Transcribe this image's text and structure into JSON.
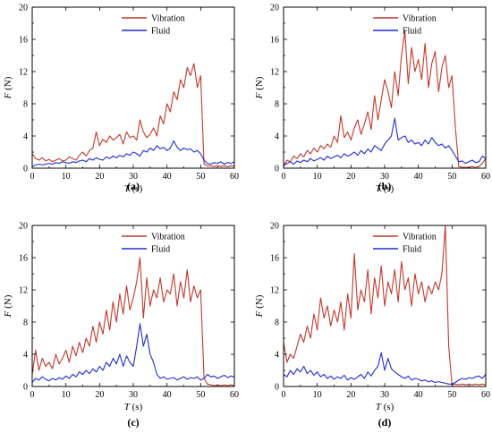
{
  "chart_data": [
    {
      "type": "line",
      "panel_label": "(a)",
      "x_unit": " (s)",
      "xlabel_var": "T",
      "ylabel_var": "F",
      "y_unit": " (N)",
      "xlim": [
        0,
        60
      ],
      "ylim": [
        0,
        20
      ],
      "xticks": [
        0,
        10,
        20,
        30,
        40,
        50,
        60
      ],
      "yticks": [
        0,
        4,
        8,
        12,
        16,
        20
      ],
      "legend_position": "top-left",
      "x": [
        0,
        1,
        2,
        3,
        4,
        5,
        6,
        7,
        8,
        9,
        10,
        11,
        12,
        13,
        14,
        15,
        16,
        17,
        18,
        19,
        20,
        21,
        22,
        23,
        24,
        25,
        26,
        27,
        28,
        29,
        30,
        31,
        32,
        33,
        34,
        35,
        36,
        37,
        38,
        39,
        40,
        41,
        42,
        43,
        44,
        45,
        46,
        47,
        48,
        49,
        50,
        51,
        52,
        53,
        54,
        55,
        56,
        57,
        58,
        59,
        60
      ],
      "series": [
        {
          "name": "Vibration",
          "color": "#c0392b",
          "values": [
            1.8,
            1.2,
            1.0,
            1.3,
            0.9,
            1.1,
            0.8,
            1.0,
            1.2,
            0.9,
            1.0,
            1.4,
            1.2,
            1.0,
            1.6,
            2.0,
            1.5,
            2.2,
            2.5,
            4.5,
            2.8,
            3.6,
            3.2,
            4.0,
            3.5,
            3.8,
            4.2,
            3.0,
            4.5,
            3.8,
            4.0,
            3.5,
            6.0,
            4.5,
            3.8,
            4.2,
            5.0,
            4.0,
            6.5,
            5.5,
            8.0,
            7.0,
            9.5,
            8.5,
            11.0,
            10.0,
            12.5,
            11.5,
            13.0,
            10.0,
            11.5,
            0.5,
            0.3,
            0.3,
            0.2,
            0.3,
            0.2,
            0.3,
            0.2,
            0.3,
            0.2
          ]
        },
        {
          "name": "Fluid",
          "color": "#1f2fd1",
          "values": [
            0.2,
            0.4,
            0.5,
            0.4,
            0.5,
            0.6,
            0.5,
            0.7,
            0.6,
            0.8,
            0.7,
            0.6,
            0.8,
            0.7,
            0.9,
            1.0,
            0.8,
            1.2,
            1.0,
            1.3,
            1.1,
            1.0,
            1.4,
            1.2,
            1.5,
            1.3,
            1.6,
            1.4,
            1.8,
            1.6,
            2.0,
            1.8,
            1.5,
            2.2,
            2.0,
            2.5,
            2.2,
            2.8,
            2.4,
            2.6,
            2.2,
            2.5,
            3.4,
            2.6,
            2.2,
            2.5,
            2.3,
            2.4,
            2.0,
            2.2,
            1.8,
            1.0,
            0.6,
            0.5,
            0.7,
            0.6,
            0.8,
            0.5,
            0.7,
            0.6,
            0.8
          ]
        }
      ]
    },
    {
      "type": "line",
      "panel_label": "(b)",
      "x_unit": " (s)",
      "xlabel_var": "T",
      "ylabel_var": "F",
      "y_unit": " (N)",
      "xlim": [
        0,
        60
      ],
      "ylim": [
        0,
        20
      ],
      "xticks": [
        0,
        10,
        20,
        30,
        40,
        50,
        60
      ],
      "yticks": [
        0,
        4,
        8,
        12,
        16,
        20
      ],
      "legend_position": "top-left",
      "x": [
        0,
        1,
        2,
        3,
        4,
        5,
        6,
        7,
        8,
        9,
        10,
        11,
        12,
        13,
        14,
        15,
        16,
        17,
        18,
        19,
        20,
        21,
        22,
        23,
        24,
        25,
        26,
        27,
        28,
        29,
        30,
        31,
        32,
        33,
        34,
        35,
        36,
        37,
        38,
        39,
        40,
        41,
        42,
        43,
        44,
        45,
        46,
        47,
        48,
        49,
        50,
        51,
        52,
        53,
        54,
        55,
        56,
        57,
        58,
        59,
        60
      ],
      "series": [
        {
          "name": "Vibration",
          "color": "#c0392b",
          "values": [
            0.3,
            1.0,
            0.8,
            1.5,
            1.2,
            1.8,
            1.4,
            2.2,
            1.8,
            2.5,
            2.0,
            2.8,
            2.4,
            3.0,
            2.6,
            4.0,
            3.2,
            6.5,
            3.8,
            4.5,
            3.5,
            5.0,
            6.0,
            4.2,
            5.5,
            7.0,
            4.8,
            9.0,
            6.0,
            8.5,
            11.0,
            9.5,
            7.5,
            12.0,
            9.0,
            14.0,
            17.0,
            10.5,
            15.0,
            12.0,
            13.5,
            11.0,
            15.5,
            10.0,
            13.0,
            14.5,
            9.5,
            12.5,
            14.0,
            10.0,
            11.5,
            5.0,
            0.2,
            0.1,
            0.1,
            0.1,
            0.2,
            0.1,
            0.2,
            0.6,
            1.2
          ]
        },
        {
          "name": "Fluid",
          "color": "#1f2fd1",
          "values": [
            0.3,
            0.6,
            0.8,
            0.5,
            0.9,
            0.7,
            1.0,
            0.8,
            1.2,
            0.9,
            1.1,
            1.3,
            1.0,
            1.5,
            1.2,
            1.4,
            1.6,
            1.3,
            1.8,
            1.5,
            1.7,
            2.0,
            1.6,
            2.2,
            1.8,
            2.4,
            2.0,
            2.8,
            2.5,
            2.2,
            3.0,
            3.5,
            4.0,
            6.2,
            3.5,
            3.8,
            4.0,
            3.2,
            3.5,
            3.0,
            3.2,
            2.8,
            3.5,
            3.0,
            3.8,
            3.2,
            2.8,
            3.0,
            2.5,
            2.8,
            2.2,
            1.5,
            0.8,
            0.9,
            0.6,
            0.8,
            1.0,
            0.7,
            0.8,
            1.5,
            1.2
          ]
        }
      ]
    },
    {
      "type": "line",
      "panel_label": "(c)",
      "x_unit": " (s)",
      "xlabel_var": "T",
      "ylabel_var": "F",
      "y_unit": " (N)",
      "xlim": [
        0,
        60
      ],
      "ylim": [
        0,
        20
      ],
      "xticks": [
        0,
        10,
        20,
        30,
        40,
        50,
        60
      ],
      "yticks": [
        0,
        4,
        8,
        12,
        16,
        20
      ],
      "legend_position": "top-left",
      "x": [
        0,
        1,
        2,
        3,
        4,
        5,
        6,
        7,
        8,
        9,
        10,
        11,
        12,
        13,
        14,
        15,
        16,
        17,
        18,
        19,
        20,
        21,
        22,
        23,
        24,
        25,
        26,
        27,
        28,
        29,
        30,
        31,
        32,
        33,
        34,
        35,
        36,
        37,
        38,
        39,
        40,
        41,
        42,
        43,
        44,
        45,
        46,
        47,
        48,
        49,
        50,
        51,
        52,
        53,
        54,
        55,
        56,
        57,
        58,
        59,
        60
      ],
      "series": [
        {
          "name": "Vibration",
          "color": "#c0392b",
          "values": [
            1.5,
            4.5,
            2.0,
            3.5,
            2.5,
            3.0,
            2.2,
            4.0,
            2.8,
            3.5,
            4.5,
            3.0,
            5.0,
            3.8,
            5.5,
            4.2,
            6.0,
            5.0,
            7.5,
            5.5,
            8.0,
            6.5,
            9.5,
            7.0,
            10.5,
            8.0,
            11.5,
            9.0,
            12.5,
            9.5,
            11.0,
            13.0,
            16.0,
            8.5,
            13.5,
            10.0,
            12.0,
            11.0,
            13.5,
            10.5,
            12.0,
            11.5,
            14.0,
            10.0,
            13.0,
            11.0,
            14.5,
            10.5,
            12.5,
            11.0,
            12.0,
            1.0,
            0.3,
            0.2,
            0.1,
            0.2,
            0.1,
            0.2,
            0.1,
            0.2,
            0.1
          ]
        },
        {
          "name": "Fluid",
          "color": "#1f2fd1",
          "values": [
            0.5,
            1.0,
            0.8,
            1.2,
            0.9,
            0.7,
            1.0,
            0.8,
            1.1,
            0.9,
            1.3,
            1.0,
            1.5,
            1.2,
            1.8,
            1.5,
            2.0,
            1.6,
            2.2,
            1.8,
            2.5,
            2.0,
            3.0,
            2.5,
            3.5,
            2.8,
            4.0,
            2.5,
            3.8,
            3.0,
            2.5,
            5.0,
            7.8,
            5.0,
            6.5,
            4.0,
            3.0,
            1.5,
            1.0,
            1.2,
            0.9,
            1.0,
            1.1,
            0.8,
            1.0,
            1.2,
            0.9,
            1.1,
            1.0,
            1.2,
            0.8,
            1.0,
            1.5,
            1.2,
            1.3,
            1.0,
            1.2,
            1.4,
            1.1,
            1.3,
            1.2
          ]
        }
      ]
    },
    {
      "type": "line",
      "panel_label": "(d)",
      "x_unit": " (s)",
      "xlabel_var": "T",
      "ylabel_var": "F",
      "y_unit": " (N)",
      "xlim": [
        0,
        60
      ],
      "ylim": [
        0,
        20
      ],
      "xticks": [
        0,
        10,
        20,
        30,
        40,
        50,
        60
      ],
      "yticks": [
        0,
        4,
        8,
        12,
        16,
        20
      ],
      "legend_position": "top-left",
      "x": [
        0,
        1,
        2,
        3,
        4,
        5,
        6,
        7,
        8,
        9,
        10,
        11,
        12,
        13,
        14,
        15,
        16,
        17,
        18,
        19,
        20,
        21,
        22,
        23,
        24,
        25,
        26,
        27,
        28,
        29,
        30,
        31,
        32,
        33,
        34,
        35,
        36,
        37,
        38,
        39,
        40,
        41,
        42,
        43,
        44,
        45,
        46,
        47,
        48,
        49,
        50,
        51,
        52,
        53,
        54,
        55,
        56,
        57,
        58,
        59,
        60
      ],
      "series": [
        {
          "name": "Vibration",
          "color": "#c0392b",
          "values": [
            5.5,
            3.0,
            4.0,
            3.5,
            5.0,
            6.5,
            5.5,
            7.5,
            6.0,
            9.0,
            7.0,
            11.0,
            8.5,
            10.0,
            7.5,
            9.5,
            8.0,
            10.5,
            7.0,
            11.5,
            8.5,
            16.5,
            9.5,
            12.0,
            10.5,
            14.5,
            9.0,
            13.5,
            11.0,
            15.0,
            10.0,
            13.0,
            11.5,
            14.5,
            10.5,
            15.5,
            12.0,
            13.5,
            10.0,
            14.0,
            11.5,
            13.0,
            10.5,
            12.5,
            11.5,
            13.0,
            12.0,
            14.0,
            20.0,
            5.0,
            0.2,
            0.3,
            0.2,
            0.3,
            0.2,
            0.3,
            0.2,
            0.3,
            0.2,
            0.3,
            0.2
          ]
        },
        {
          "name": "Fluid",
          "color": "#1f2fd1",
          "values": [
            1.5,
            1.2,
            2.0,
            1.5,
            2.2,
            1.8,
            2.5,
            1.6,
            2.0,
            1.4,
            1.8,
            1.2,
            1.5,
            1.0,
            1.3,
            0.9,
            1.2,
            1.0,
            1.4,
            0.8,
            1.1,
            0.9,
            1.2,
            1.5,
            1.0,
            1.8,
            1.3,
            2.0,
            2.5,
            4.2,
            2.0,
            3.5,
            2.2,
            1.8,
            1.5,
            1.2,
            1.0,
            1.3,
            0.8,
            1.0,
            0.9,
            0.7,
            0.8,
            0.6,
            0.7,
            0.5,
            0.6,
            0.5,
            0.4,
            0.3,
            0.3,
            0.5,
            0.8,
            1.0,
            0.9,
            1.1,
            1.0,
            1.2,
            1.3,
            1.0,
            1.5
          ]
        }
      ]
    }
  ]
}
